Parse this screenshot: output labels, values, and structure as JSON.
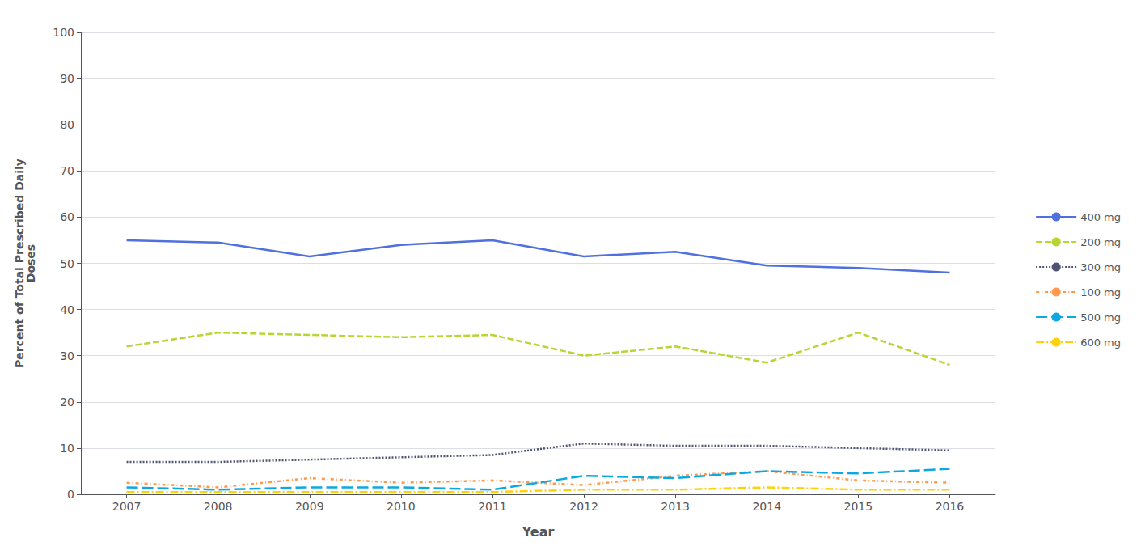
{
  "chart_data": {
    "type": "line",
    "x": [
      2007,
      2008,
      2009,
      2010,
      2011,
      2012,
      2013,
      2014,
      2015,
      2016
    ],
    "series": [
      {
        "name": "400 mg",
        "values": [
          55.0,
          54.5,
          51.5,
          54.0,
          55.0,
          51.5,
          52.5,
          49.5,
          49.0,
          48.0
        ],
        "line_style": "solid"
      },
      {
        "name": "200 mg",
        "values": [
          32.0,
          35.0,
          34.5,
          34.0,
          34.5,
          30.0,
          32.0,
          28.5,
          35.0,
          28.0
        ],
        "line_style": "dashed"
      },
      {
        "name": "300 mg",
        "values": [
          7.0,
          7.0,
          7.5,
          8.0,
          8.5,
          11.0,
          10.5,
          10.5,
          10.0,
          9.5
        ],
        "line_style": "dotted"
      },
      {
        "name": "100 mg",
        "values": [
          2.5,
          1.5,
          3.5,
          2.5,
          3.0,
          2.0,
          4.0,
          5.0,
          3.0,
          2.5
        ],
        "line_style": "dashdot"
      },
      {
        "name": "500 mg",
        "values": [
          1.5,
          1.0,
          1.5,
          1.5,
          1.0,
          4.0,
          3.5,
          5.0,
          4.5,
          5.5
        ],
        "line_style": "longdashed"
      },
      {
        "name": "600 mg",
        "values": [
          0.5,
          0.5,
          0.5,
          0.5,
          0.5,
          1.0,
          1.0,
          1.5,
          1.0,
          1.0
        ],
        "line_style": "longdashdot"
      }
    ],
    "xlabel": "Year",
    "ylabel": "Percent of Total Prescribed Daily\nDoses",
    "xlim": [
      2006.5,
      2016.5
    ],
    "xticks": [
      2007,
      2008,
      2009,
      2010,
      2011,
      2012,
      2013,
      2014,
      2015,
      2016
    ],
    "ylim": [
      0,
      100
    ],
    "yticks": [
      0,
      10,
      20,
      30,
      40,
      50,
      60,
      70,
      80,
      90,
      100
    ],
    "grid": true,
    "legend": "right"
  }
}
